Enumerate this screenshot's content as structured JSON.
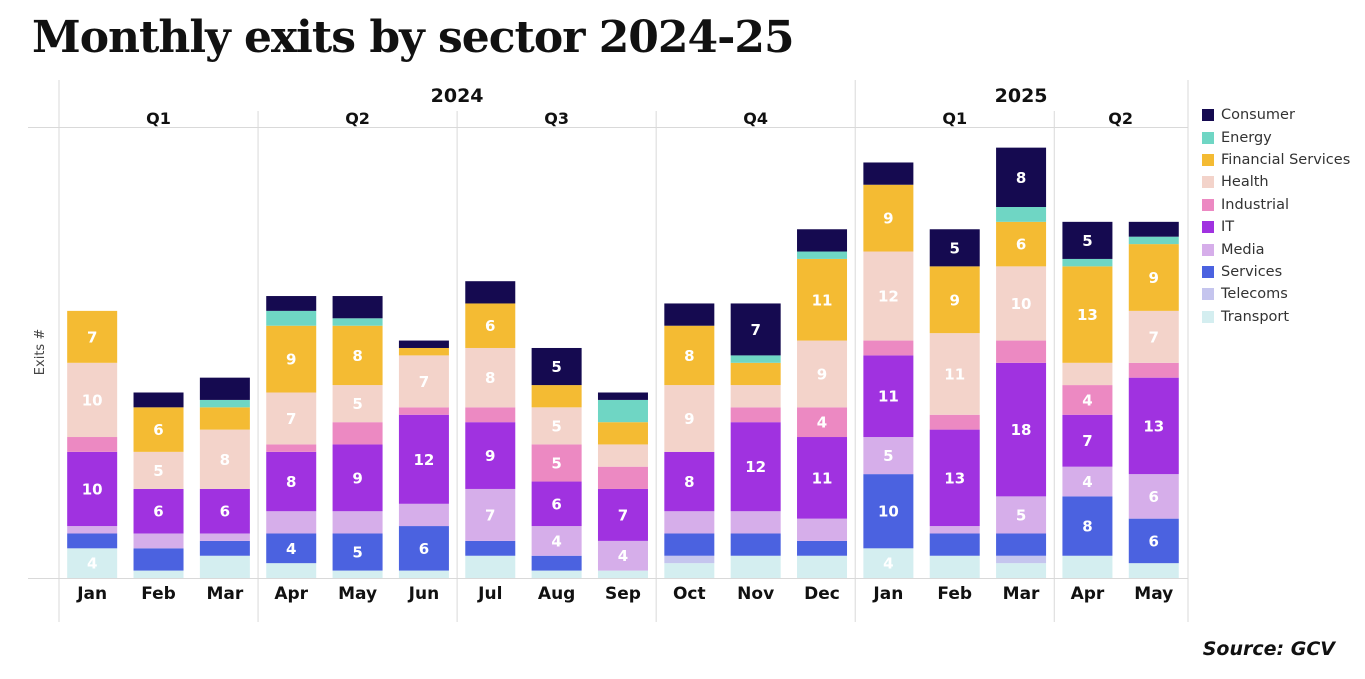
{
  "chart_data": {
    "type": "bar",
    "stacked": true,
    "title": "Monthly exits by sector 2024-25",
    "xlabel": "",
    "ylabel": "Exits #",
    "ylim": [
      0,
      62
    ],
    "grid": false,
    "legend_position": "right",
    "source": "Source: GCV",
    "years": [
      {
        "label": "2024",
        "quarters": [
          {
            "label": "Q1",
            "months": [
              "Jan",
              "Feb",
              "Mar"
            ]
          },
          {
            "label": "Q2",
            "months": [
              "Apr",
              "May",
              "Jun"
            ]
          },
          {
            "label": "Q3",
            "months": [
              "Jul",
              "Aug",
              "Sep"
            ]
          },
          {
            "label": "Q4",
            "months": [
              "Oct",
              "Nov",
              "Dec"
            ]
          }
        ]
      },
      {
        "label": "2025",
        "quarters": [
          {
            "label": "Q1",
            "months": [
              "Jan",
              "Feb",
              "Mar"
            ]
          },
          {
            "label": "Q2",
            "months": [
              "Apr",
              "May"
            ]
          }
        ]
      }
    ],
    "categories": [
      "Jan 2024",
      "Feb 2024",
      "Mar 2024",
      "Apr 2024",
      "May 2024",
      "Jun 2024",
      "Jul 2024",
      "Aug 2024",
      "Sep 2024",
      "Oct 2024",
      "Nov 2024",
      "Dec 2024",
      "Jan 2025",
      "Feb 2025",
      "Mar 2025",
      "Apr 2025",
      "May 2025"
    ],
    "label_threshold": 4,
    "series": [
      {
        "name": "Transport",
        "color": "#d4eef0",
        "values": [
          4,
          1,
          3,
          2,
          1,
          1,
          3,
          1,
          1,
          2,
          3,
          3,
          4,
          3,
          2,
          3,
          2
        ]
      },
      {
        "name": "Telecoms",
        "color": "#c5c5ee",
        "values": [
          0,
          0,
          0,
          0,
          0,
          0,
          0,
          0,
          0,
          1,
          0,
          0,
          0,
          0,
          1,
          0,
          0
        ]
      },
      {
        "name": "Services",
        "color": "#4b62e0",
        "values": [
          2,
          3,
          2,
          4,
          5,
          6,
          2,
          2,
          0,
          3,
          3,
          2,
          10,
          3,
          3,
          8,
          6
        ]
      },
      {
        "name": "Media",
        "color": "#d6aeea",
        "values": [
          1,
          2,
          1,
          3,
          3,
          3,
          7,
          4,
          4,
          3,
          3,
          3,
          5,
          1,
          5,
          4,
          6
        ]
      },
      {
        "name": "IT",
        "color": "#a032e0",
        "values": [
          10,
          6,
          6,
          8,
          9,
          12,
          9,
          6,
          7,
          8,
          12,
          11,
          11,
          13,
          18,
          7,
          13
        ]
      },
      {
        "name": "Industrial",
        "color": "#ec89c2",
        "values": [
          2,
          0,
          0,
          1,
          3,
          1,
          2,
          5,
          3,
          0,
          2,
          4,
          2,
          2,
          3,
          4,
          2
        ]
      },
      {
        "name": "Health",
        "color": "#f3d3ca",
        "values": [
          10,
          5,
          8,
          7,
          5,
          7,
          8,
          5,
          3,
          9,
          3,
          9,
          12,
          11,
          10,
          3,
          7
        ]
      },
      {
        "name": "Financial Services",
        "color": "#f4bb33",
        "values": [
          7,
          6,
          3,
          9,
          8,
          1,
          6,
          3,
          3,
          8,
          3,
          11,
          9,
          9,
          6,
          13,
          9
        ]
      },
      {
        "name": "Energy",
        "color": "#6fd6c4",
        "values": [
          0,
          0,
          1,
          2,
          1,
          0,
          0,
          0,
          3,
          0,
          1,
          1,
          0,
          0,
          2,
          1,
          1
        ]
      },
      {
        "name": "Consumer",
        "color": "#150a50",
        "values": [
          0,
          2,
          3,
          2,
          3,
          1,
          3,
          5,
          1,
          3,
          7,
          3,
          3,
          5,
          8,
          5,
          2
        ]
      }
    ],
    "legend": [
      "Consumer",
      "Energy",
      "Financial Services",
      "Health",
      "Industrial",
      "IT",
      "Media",
      "Services",
      "Telecoms",
      "Transport"
    ]
  }
}
